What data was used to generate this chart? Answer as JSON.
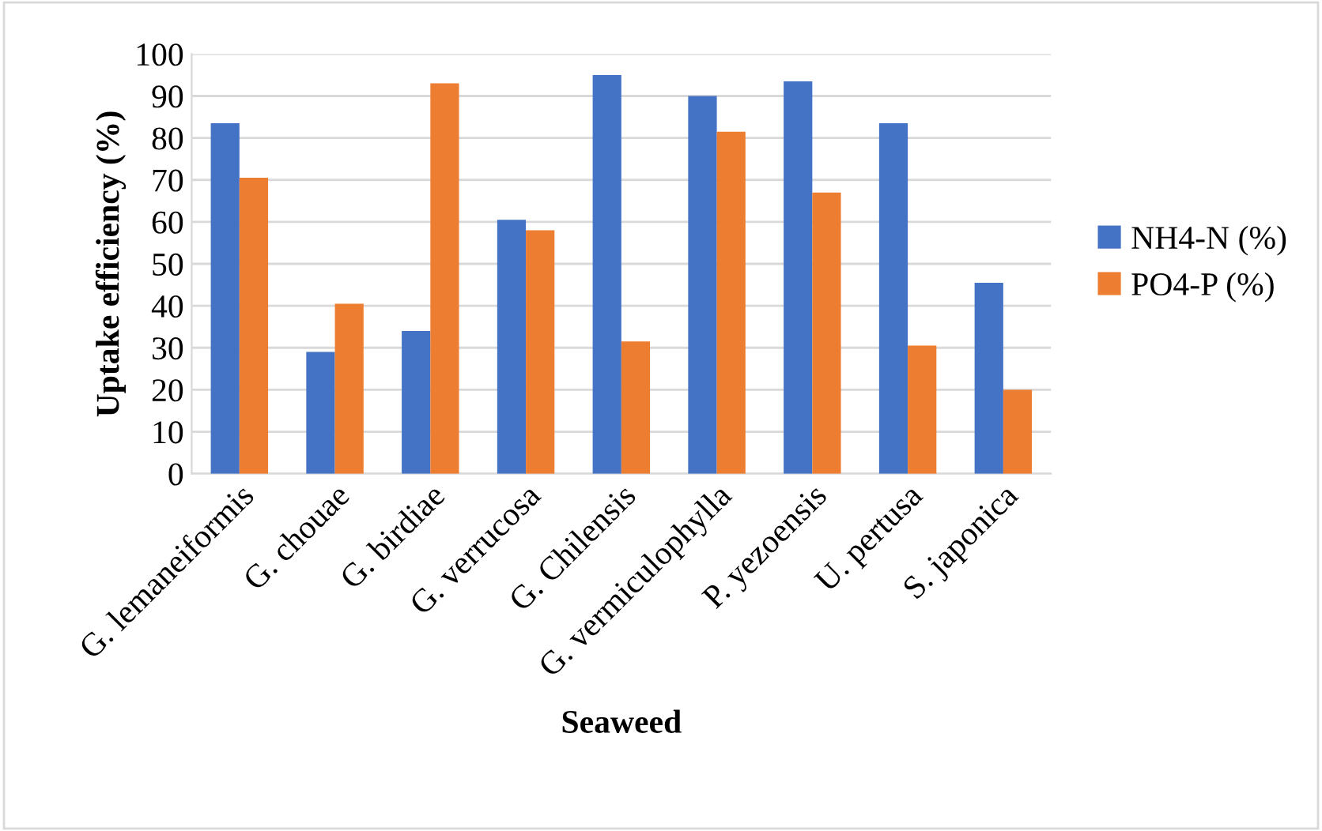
{
  "chart_data": {
    "type": "bar",
    "xlabel": "Seaweed",
    "ylabel": "Uptake efficiency (%)",
    "categories": [
      "G. lemaneiformis",
      "G. chouae",
      "G. birdiae",
      "G. verrucosa",
      "G. Chilensis",
      "G. vermiculophylla",
      "P. yezoensis",
      "U. pertusa",
      "S. japonica"
    ],
    "series": [
      {
        "name": "NH4-N (%)",
        "color": "#4472c4",
        "values": [
          83.5,
          29,
          34,
          60.5,
          95,
          90,
          93.5,
          83.5,
          45.5
        ]
      },
      {
        "name": "PO4-P (%)",
        "color": "#ed7d31",
        "values": [
          70.5,
          40.5,
          93,
          58,
          31.5,
          81.5,
          67,
          30.5,
          20
        ]
      }
    ],
    "ylim": [
      0,
      100
    ],
    "yticks": [
      0,
      10,
      20,
      30,
      40,
      50,
      60,
      70,
      80,
      90,
      100
    ],
    "grid": "y",
    "legend": "right"
  }
}
